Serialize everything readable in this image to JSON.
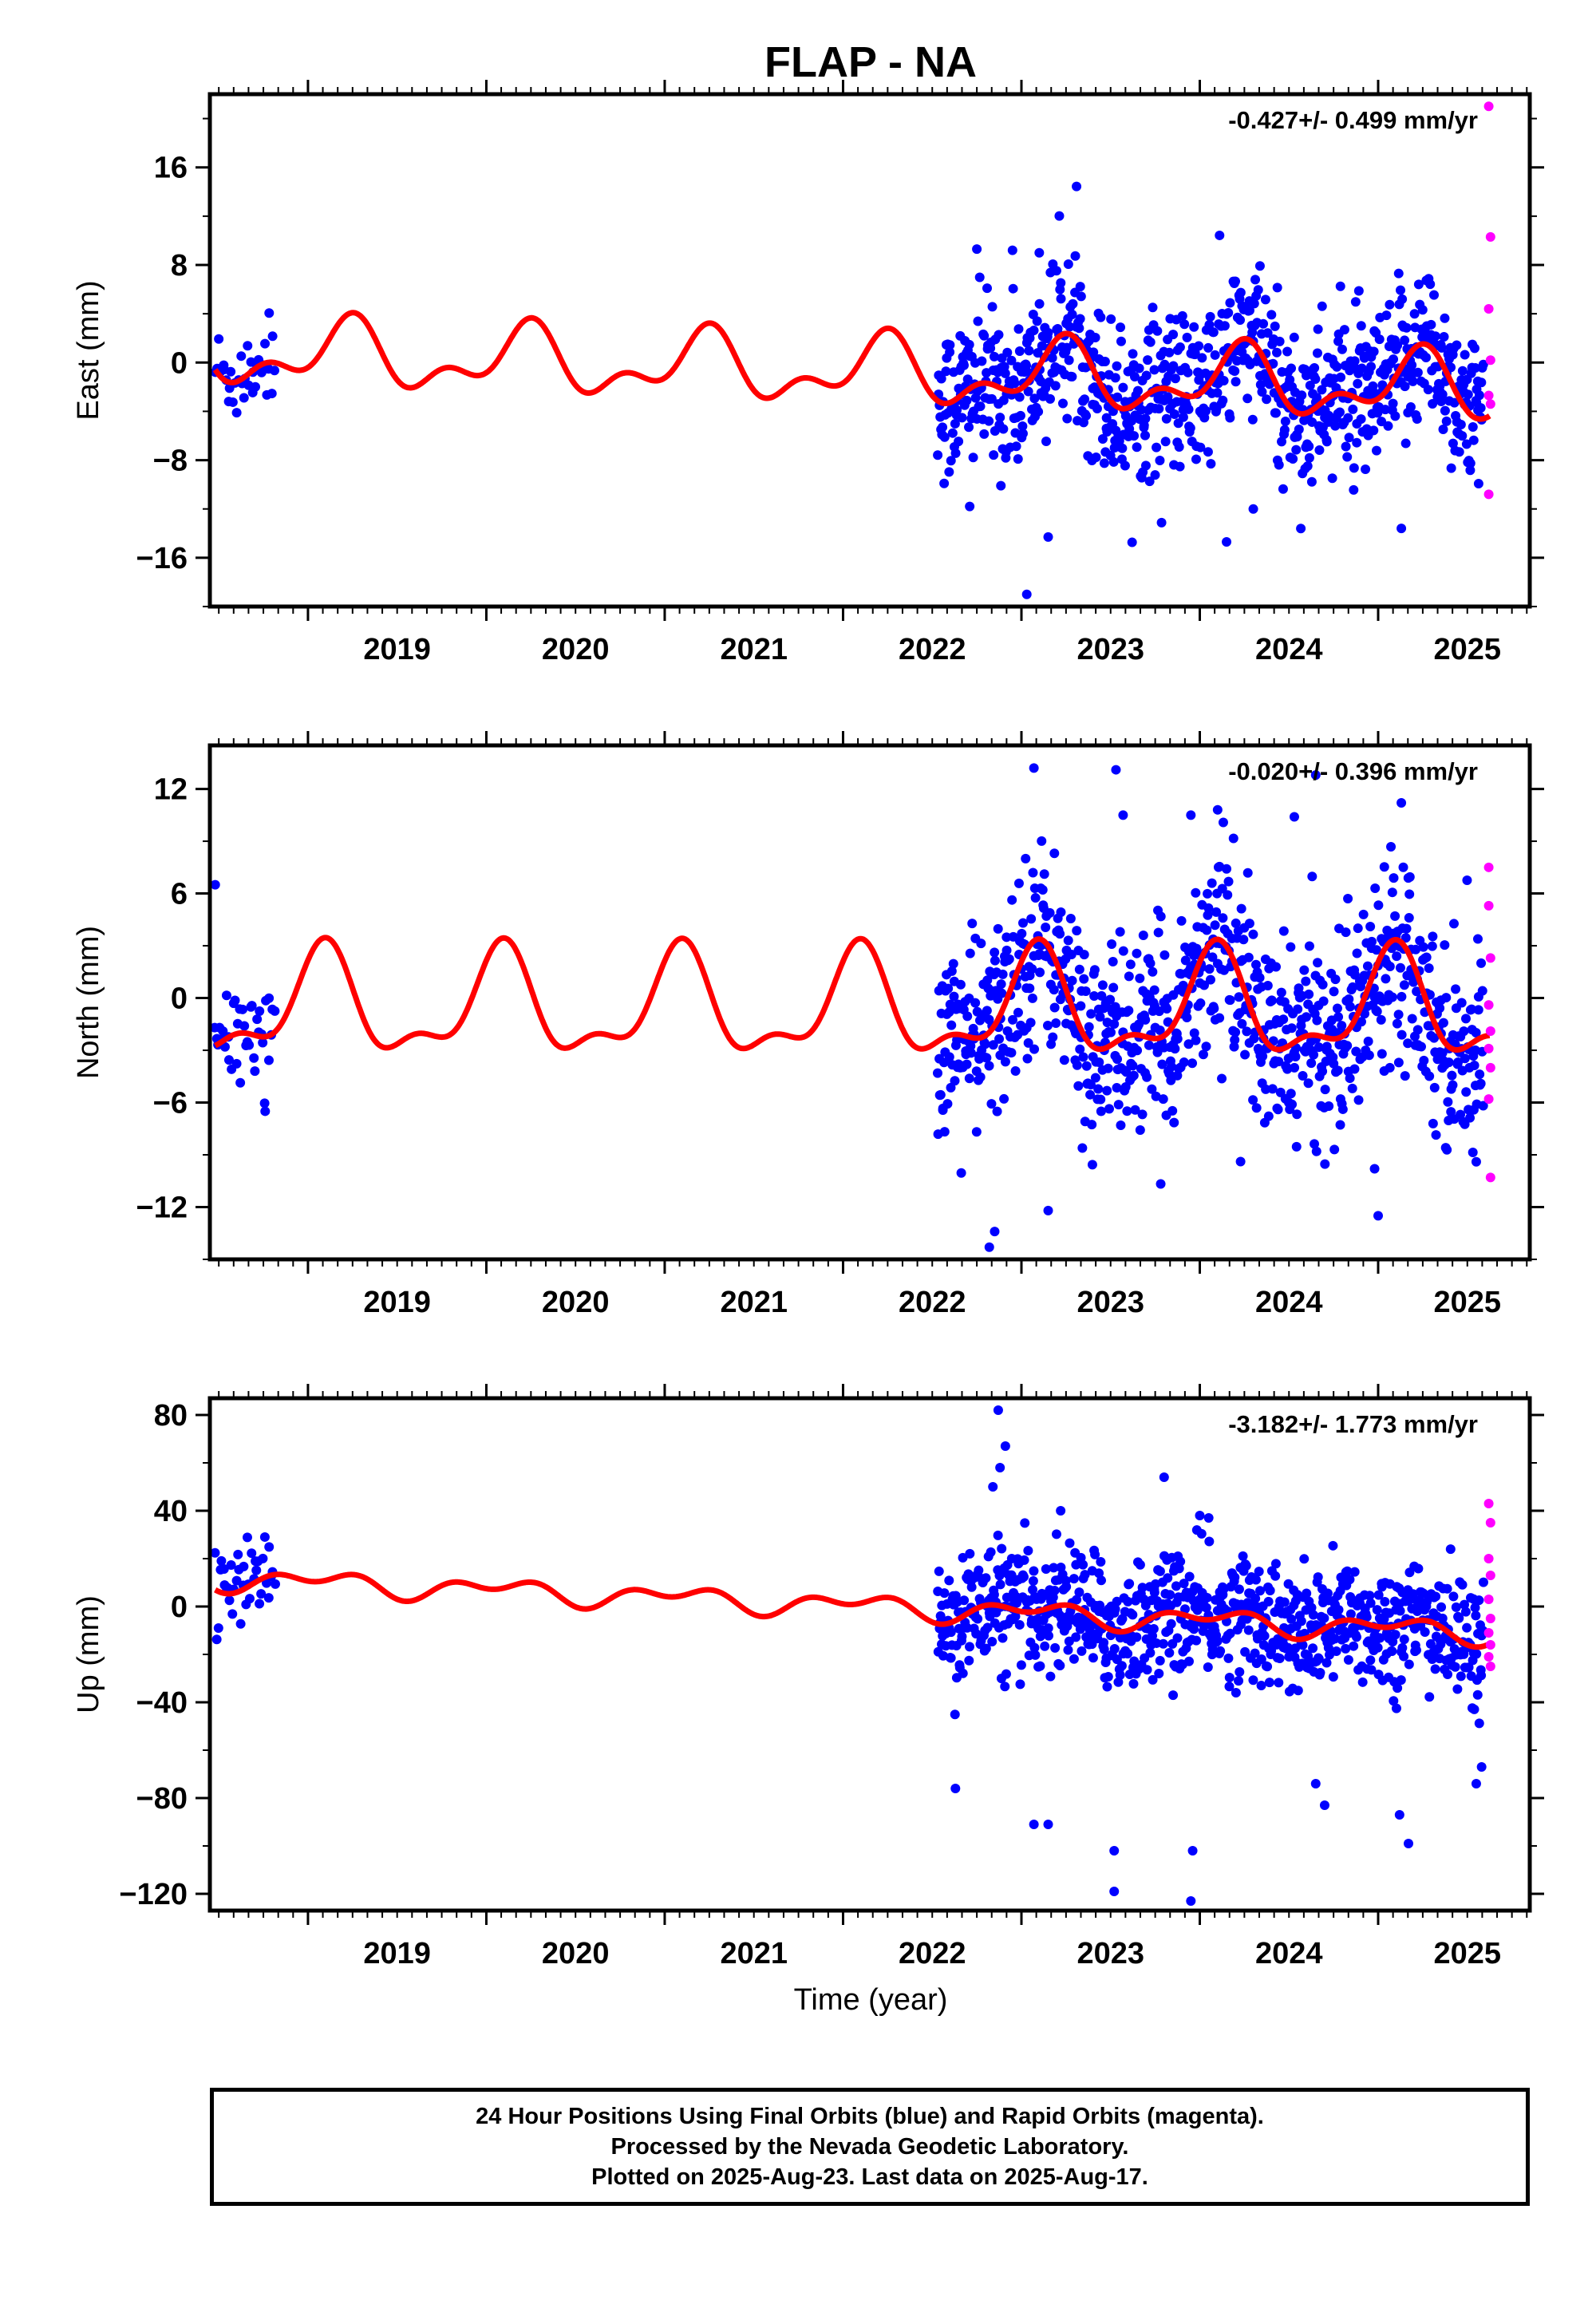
{
  "title": "FLAP - NA",
  "xlabel": "Time (year)",
  "caption": [
    "24 Hour Positions Using Final Orbits (blue) and Rapid Orbits (magenta).",
    "Processed by the Nevada Geodetic Laboratory.",
    "Plotted on 2025-Aug-23. Last data on 2025-Aug-17."
  ],
  "colors": {
    "final": "#0000ff",
    "rapid": "#ff00ff",
    "model": "#ff0000",
    "frame": "#000000"
  },
  "chart_data": [
    {
      "type": "scatter",
      "component": "East",
      "ylabel": "East (mm)",
      "rate_label": "-0.427+/- 0.499 mm/yr",
      "xlim": [
        2018.45,
        2025.85
      ],
      "ylim": [
        -20,
        22
      ],
      "yticks": [
        -16,
        -8,
        0,
        8,
        16
      ],
      "xticks": [
        2019,
        2020,
        2021,
        2022,
        2023,
        2024,
        2025
      ],
      "model": {
        "offset": -0.9,
        "trend": -0.427,
        "ref": 2022.5,
        "annual": [
          2.2,
          0.4
        ],
        "semiannual": [
          -0.3,
          -1.4
        ]
      },
      "final_data": {
        "segments": [
          [
            2018.48,
            2018.82,
            0.009
          ],
          [
            2022.53,
            2025.59,
            0.0035
          ]
        ],
        "early_offset": 1.2,
        "noise_sigma": 3.3,
        "outliers": [
          [
            2023.03,
            -19.0
          ],
          [
            2022.75,
            9.3
          ],
          [
            2022.95,
            9.2
          ],
          [
            2023.1,
            9.0
          ],
          [
            2023.15,
            -14.3
          ],
          [
            2024.15,
            -14.7
          ],
          [
            2024.3,
            -12.0
          ],
          [
            2025.13,
            -13.6
          ],
          [
            2022.71,
            -11.8
          ]
        ]
      },
      "rapid_data": [
        [
          2025.62,
          21.0
        ],
        [
          2025.63,
          10.3
        ],
        [
          2025.62,
          4.4
        ],
        [
          2025.63,
          0.2
        ],
        [
          2025.62,
          -2.7
        ],
        [
          2025.63,
          -3.4
        ],
        [
          2025.62,
          -10.8
        ]
      ]
    },
    {
      "type": "scatter",
      "component": "North",
      "ylabel": "North (mm)",
      "rate_label": "-0.020+/- 0.396 mm/yr",
      "xlim": [
        2018.45,
        2025.85
      ],
      "ylim": [
        -15,
        14.5
      ],
      "yticks": [
        -12,
        -6,
        0,
        6,
        12
      ],
      "xticks": [
        2019,
        2020,
        2021,
        2022,
        2023,
        2024,
        2025
      ],
      "model": {
        "offset": -0.6,
        "trend": -0.02,
        "ref": 2022.5,
        "annual": [
          1.4,
          2.4
        ],
        "semiannual": [
          1.2,
          0.3
        ]
      },
      "final_data": {
        "segments": [
          [
            2018.48,
            2018.82,
            0.009
          ],
          [
            2022.53,
            2025.59,
            0.0035
          ]
        ],
        "early_offset": 0.0,
        "noise_sigma": 2.8,
        "outliers": [
          [
            2023.07,
            13.2
          ],
          [
            2023.53,
            13.1
          ],
          [
            2023.57,
            10.5
          ],
          [
            2023.95,
            10.5
          ],
          [
            2024.1,
            10.8
          ],
          [
            2024.53,
            10.4
          ],
          [
            2024.65,
            12.8
          ],
          [
            2025.13,
            11.2
          ],
          [
            2022.82,
            -14.3
          ],
          [
            2022.85,
            -13.4
          ],
          [
            2023.15,
            -12.2
          ],
          [
            2025.0,
            -12.5
          ],
          [
            2024.98,
            -9.8
          ],
          [
            2025.55,
            -9.4
          ],
          [
            2018.76,
            -6.5
          ],
          [
            2018.48,
            6.5
          ]
        ]
      },
      "rapid_data": [
        [
          2025.62,
          7.5
        ],
        [
          2025.62,
          5.3
        ],
        [
          2025.63,
          2.3
        ],
        [
          2025.62,
          -0.4
        ],
        [
          2025.63,
          -1.9
        ],
        [
          2025.62,
          -2.9
        ],
        [
          2025.63,
          -4.0
        ],
        [
          2025.62,
          -5.8
        ],
        [
          2025.63,
          -10.3
        ]
      ]
    },
    {
      "type": "scatter",
      "component": "Up",
      "ylabel": "Up (mm)",
      "rate_label": "-3.182+/- 1.773 mm/yr",
      "xlim": [
        2018.45,
        2025.85
      ],
      "ylim": [
        -127,
        87
      ],
      "yticks": [
        -120,
        -80,
        -40,
        0,
        40,
        80
      ],
      "xticks": [
        2019,
        2020,
        2021,
        2022,
        2023,
        2024,
        2025
      ],
      "model": {
        "offset": -1.0,
        "trend": -3.182,
        "ref": 2022.5,
        "annual": [
          1.5,
          3.0
        ],
        "semiannual": [
          -1.5,
          -2.5
        ]
      },
      "final_data": {
        "segments": [
          [
            2018.48,
            2018.82,
            0.009
          ],
          [
            2022.53,
            2025.59,
            0.0035
          ]
        ],
        "early_offset": 7.0,
        "noise_sigma": 13.0,
        "outliers": [
          [
            2022.87,
            82.0
          ],
          [
            2022.91,
            67.0
          ],
          [
            2022.88,
            58.0
          ],
          [
            2022.84,
            50.0
          ],
          [
            2023.8,
            54.0
          ],
          [
            2023.22,
            40.0
          ],
          [
            2024.0,
            38.0
          ],
          [
            2024.05,
            37.0
          ],
          [
            2023.52,
            -102.0
          ],
          [
            2023.52,
            -119.0
          ],
          [
            2023.96,
            -102.0
          ],
          [
            2023.95,
            -123.0
          ],
          [
            2023.15,
            -91.0
          ],
          [
            2023.07,
            -91.0
          ],
          [
            2025.12,
            -87.0
          ],
          [
            2025.17,
            -99.0
          ],
          [
            2022.63,
            -76.0
          ],
          [
            2024.7,
            -83.0
          ],
          [
            2024.65,
            -74.0
          ],
          [
            2025.55,
            -74.0
          ],
          [
            2025.58,
            -67.0
          ]
        ]
      },
      "rapid_data": [
        [
          2025.62,
          43.0
        ],
        [
          2025.63,
          35.0
        ],
        [
          2025.62,
          20.0
        ],
        [
          2025.63,
          13.0
        ],
        [
          2025.62,
          3.0
        ],
        [
          2025.63,
          -5.0
        ],
        [
          2025.62,
          -11.0
        ],
        [
          2025.63,
          -16.0
        ],
        [
          2025.62,
          -21.0
        ],
        [
          2025.63,
          -25.0
        ]
      ]
    }
  ]
}
